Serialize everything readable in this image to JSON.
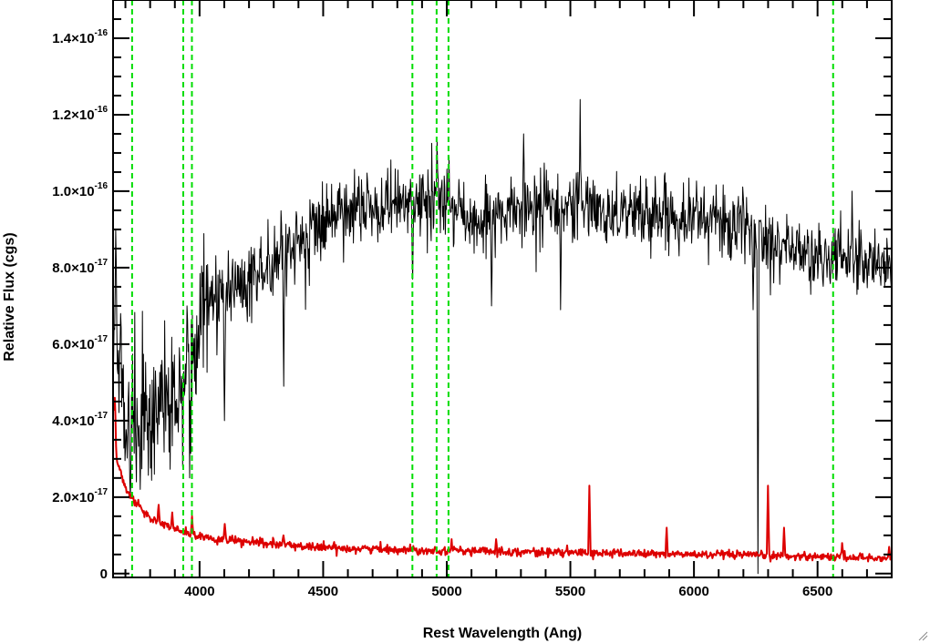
{
  "chart_data": {
    "type": "line",
    "title": "",
    "xlabel": "Rest Wavelength (Ang)",
    "ylabel": "Relative Flux (cgs)",
    "xlim": [
      3650,
      6800
    ],
    "ylim": [
      -1e-18,
      1.5e-16
    ],
    "grid": false,
    "legend": "none",
    "x_ticks": [
      {
        "value": 4000,
        "label": "4000"
      },
      {
        "value": 4500,
        "label": "4500"
      },
      {
        "value": 5000,
        "label": "5000"
      },
      {
        "value": 5500,
        "label": "5500"
      },
      {
        "value": 6000,
        "label": "6000"
      },
      {
        "value": 6500,
        "label": "6500"
      }
    ],
    "y_ticks": [
      {
        "value": 0,
        "mant": "0",
        "exp": ""
      },
      {
        "value": 2e-17,
        "mant": "2.0×10",
        "exp": "-17"
      },
      {
        "value": 4e-17,
        "mant": "4.0×10",
        "exp": "-17"
      },
      {
        "value": 6e-17,
        "mant": "6.0×10",
        "exp": "-17"
      },
      {
        "value": 8e-17,
        "mant": "8.0×10",
        "exp": "-17"
      },
      {
        "value": 1e-16,
        "mant": "1.0×10",
        "exp": "-16"
      },
      {
        "value": 1.2e-16,
        "mant": "1.2×10",
        "exp": "-16"
      },
      {
        "value": 1.4e-16,
        "mant": "1.4×10",
        "exp": "-16"
      }
    ],
    "reference_lines": {
      "color": "#00dd00",
      "style": "dashed",
      "x": [
        3727,
        3934,
        3969,
        4861,
        4959,
        5007,
        6563
      ]
    },
    "series": [
      {
        "role": "flux",
        "color": "#000000",
        "continuum": [
          [
            3650,
            6.5e-17
          ],
          [
            3700,
            4e-17
          ],
          [
            3800,
            4.2e-17
          ],
          [
            3900,
            4.6e-17
          ],
          [
            3960,
            5e-17
          ],
          [
            4000,
            6.8e-17
          ],
          [
            4100,
            7.3e-17
          ],
          [
            4200,
            7.8e-17
          ],
          [
            4300,
            8e-17
          ],
          [
            4400,
            8.6e-17
          ],
          [
            4500,
            9.2e-17
          ],
          [
            4600,
            9.5e-17
          ],
          [
            4700,
            9.6e-17
          ],
          [
            4800,
            9.7e-17
          ],
          [
            4900,
            9.7e-17
          ],
          [
            5000,
            9.6e-17
          ],
          [
            5100,
            9.3e-17
          ],
          [
            5200,
            9.3e-17
          ],
          [
            5300,
            9.5e-17
          ],
          [
            5400,
            9.6e-17
          ],
          [
            5500,
            9.5e-17
          ],
          [
            5600,
            9.5e-17
          ],
          [
            5700,
            9.5e-17
          ],
          [
            5800,
            9.4e-17
          ],
          [
            5900,
            9.4e-17
          ],
          [
            6000,
            9.4e-17
          ],
          [
            6100,
            9.2e-17
          ],
          [
            6200,
            9e-17
          ],
          [
            6300,
            8.8e-17
          ],
          [
            6400,
            8.5e-17
          ],
          [
            6500,
            8.2e-17
          ],
          [
            6600,
            8.3e-17
          ],
          [
            6700,
            8.2e-17
          ],
          [
            6800,
            8e-17
          ]
        ],
        "noise_sigma": [
          [
            3650,
            9e-18
          ],
          [
            3980,
            9e-18
          ],
          [
            4100,
            5.5e-18
          ],
          [
            4600,
            4.5e-18
          ],
          [
            6800,
            4.5e-18
          ]
        ],
        "features": [
          {
            "x": 3660,
            "y": 9e-17
          },
          {
            "x": 3680,
            "y": 6.8e-17
          },
          {
            "x": 3720,
            "y": 2e-17
          },
          {
            "x": 3760,
            "y": 2.2e-17
          },
          {
            "x": 3960,
            "y": 2.5e-17
          },
          {
            "x": 3950,
            "y": 7e-17
          },
          {
            "x": 4100,
            "y": 4e-17
          },
          {
            "x": 4340,
            "y": 4.9e-17
          },
          {
            "x": 4861,
            "y": 7.7e-17
          },
          {
            "x": 4960,
            "y": 1.13e-16
          },
          {
            "x": 5010,
            "y": 1.09e-16
          },
          {
            "x": 5180,
            "y": 7e-17
          },
          {
            "x": 5310,
            "y": 1.15e-16
          },
          {
            "x": 5460,
            "y": 6.9e-17
          },
          {
            "x": 5540,
            "y": 1.24e-16
          },
          {
            "x": 5880,
            "y": 1.04e-16
          },
          {
            "x": 6240,
            "y": 6.9e-17
          },
          {
            "x": 6260,
            "y": 0.0
          },
          {
            "x": 6640,
            "y": 1e-16
          }
        ]
      },
      {
        "role": "error",
        "color": "#dd0000",
        "continuum": [
          [
            3655,
            4.2e-17
          ],
          [
            3665,
            3e-17
          ],
          [
            3700,
            2.2e-17
          ],
          [
            3750,
            1.8e-17
          ],
          [
            3800,
            1.45e-17
          ],
          [
            3900,
            1.15e-17
          ],
          [
            4000,
            9.5e-18
          ],
          [
            4200,
            8.2e-18
          ],
          [
            4500,
            6.8e-18
          ],
          [
            5000,
            6e-18
          ],
          [
            5500,
            5.5e-18
          ],
          [
            6000,
            5e-18
          ],
          [
            6500,
            4.5e-18
          ],
          [
            6800,
            4e-18
          ]
        ],
        "noise_sigma": [
          [
            3650,
            6e-19
          ],
          [
            6800,
            5e-19
          ]
        ],
        "features": [
          {
            "x": 3658,
            "y": 4.6e-17
          },
          {
            "x": 3835,
            "y": 1.8e-17
          },
          {
            "x": 3889,
            "y": 1.6e-17
          },
          {
            "x": 3970,
            "y": 1.5e-17
          },
          {
            "x": 4102,
            "y": 1.3e-17
          },
          {
            "x": 4340,
            "y": 1e-17
          },
          {
            "x": 5020,
            "y": 9e-18
          },
          {
            "x": 5200,
            "y": 9e-18
          },
          {
            "x": 5577,
            "y": 2.3e-17
          },
          {
            "x": 5890,
            "y": 1.2e-17
          },
          {
            "x": 6300,
            "y": 2.3e-17
          },
          {
            "x": 6364,
            "y": 1.2e-17
          },
          {
            "x": 6600,
            "y": 8e-18
          },
          {
            "x": 6790,
            "y": 7e-18
          }
        ]
      }
    ]
  }
}
